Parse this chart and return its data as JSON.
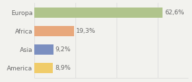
{
  "categories": [
    "Europa",
    "Africa",
    "Asia",
    "America"
  ],
  "values": [
    62.6,
    19.3,
    9.2,
    8.9
  ],
  "labels": [
    "62,6%",
    "19,3%",
    "9,2%",
    "8,9%"
  ],
  "bar_colors": [
    "#b0c48c",
    "#e8a87c",
    "#7b8fc0",
    "#f0cc6a"
  ],
  "background_color": "#f2f2ee",
  "xlim": [
    0,
    75
  ],
  "bar_height": 0.55,
  "label_fontsize": 6.5,
  "category_fontsize": 6.5,
  "grid_color": "#d8d8d8",
  "text_color": "#666666"
}
